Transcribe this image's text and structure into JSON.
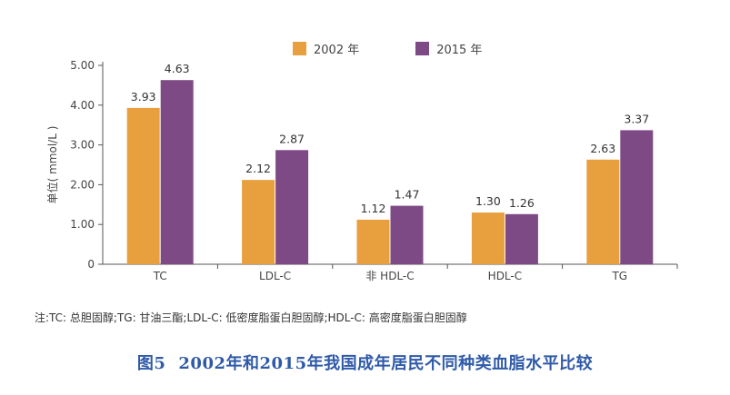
{
  "chart_data": {
    "type": "bar",
    "categories": [
      "TC",
      "LDL-C",
      "非 HDL-C",
      "HDL-C",
      "TG"
    ],
    "series": [
      {
        "name": "2002 年",
        "color": "#e8a03f",
        "values": [
          3.93,
          2.12,
          1.12,
          1.3,
          2.63
        ]
      },
      {
        "name": "2015 年",
        "color": "#7e4a86",
        "values": [
          4.63,
          2.87,
          1.47,
          1.26,
          3.37
        ]
      }
    ],
    "value_labels_2002": [
      "3.93",
      "2.12",
      "1.12",
      "1.30",
      "2.63"
    ],
    "value_labels_2015": [
      "4.63",
      "2.87",
      "1.47",
      "1.26",
      "3.37"
    ],
    "ylabel": "单位( mmol/L )",
    "ylim": [
      0,
      5
    ],
    "yticks": [
      "0",
      "1.00",
      "2.00",
      "3.00",
      "4.00",
      "5.00"
    ],
    "legend_position": "top-center",
    "grid": false
  },
  "legend": {
    "label_2002": "2002 年",
    "label_2015": "2015 年"
  },
  "note": "注:TC: 总胆固醇;TG: 甘油三酯;LDL-C: 低密度脂蛋白胆固醇;HDL-C: 高密度脂蛋白胆固醇",
  "caption": {
    "fig_no": "图5",
    "title": "2002年和2015年我国成年居民不同种类血脂水平比较"
  }
}
